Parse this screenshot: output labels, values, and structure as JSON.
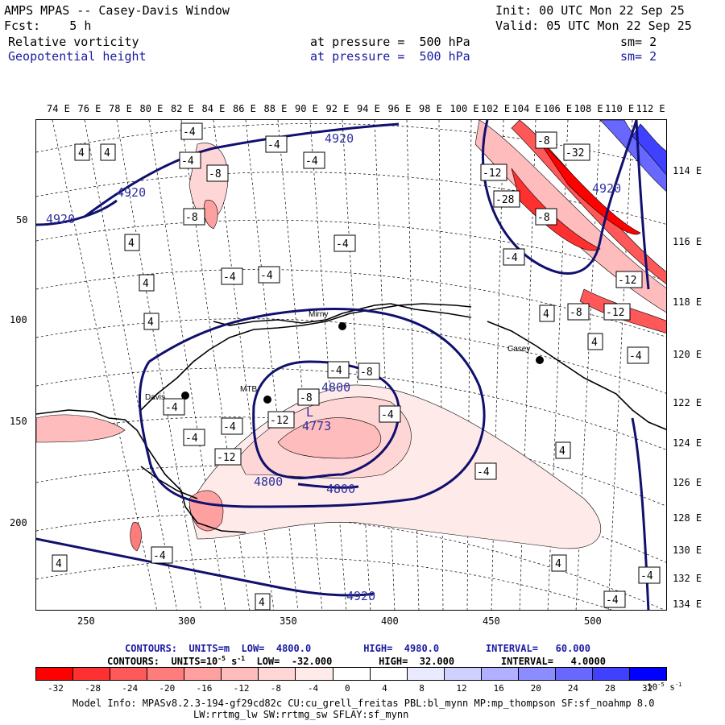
{
  "header": {
    "model_title": "AMPS MPAS -- Casey-Davis Window",
    "init_time": "Init: 00 UTC Mon 22 Sep 25",
    "fcst": "Fcst:    5 h",
    "valid_time": "Valid: 05 UTC Mon 22 Sep 25",
    "field1_name": "Relative vorticity",
    "field1_level": "at pressure =  500 hPa",
    "field1_smooth": "sm= 2",
    "field2_name": "Geopotential height",
    "field2_level": "at pressure =  500 hPa",
    "field2_smooth": "sm= 2"
  },
  "map": {
    "top_longitudes": [
      "74 E",
      "76 E",
      "78 E",
      "80 E",
      "82 E",
      "84 E",
      "86 E",
      "88 E",
      "90 E",
      "92 E",
      "94 E",
      "96 E",
      "98 E",
      "100 E",
      "102 E",
      "104 E",
      "106 E",
      "108 E",
      "110 E",
      "112 E"
    ],
    "right_longitudes": [
      "114 E",
      "116 E",
      "118 E",
      "120 E",
      "122 E",
      "124 E",
      "126 E",
      "128 E",
      "130 E",
      "132 E",
      "134 E"
    ],
    "y_grid_labels": [
      "50",
      "100",
      "150",
      "200"
    ],
    "x_grid_labels": [
      "250",
      "300",
      "350",
      "400",
      "450",
      "500"
    ],
    "stations": [
      "Davis",
      "MTB",
      "Mirny",
      "Casey"
    ],
    "height_contour_labels": [
      "4920",
      "4920",
      "4920",
      "4920",
      "4800",
      "4773",
      "4800",
      "4800",
      "4920"
    ],
    "vorticity_labels": [
      "4",
      "-4",
      "-8",
      "-12",
      "-32",
      "-28"
    ],
    "low_center_label": "L"
  },
  "contour_info": {
    "line1": "CONTOURS:  UNITS=m  LOW=  4800.0         HIGH=  4980.0        INTERVAL=   60.000",
    "line2": "CONTOURS:  UNITS=10",
    "line2_exp": "-5",
    "line2_s": " s",
    "line2_sexp": "-1",
    "line2_rest": "  LOW=  -32.000        HIGH=  32.000        INTERVAL=   4.0000"
  },
  "colorbar": {
    "labels": [
      "-32",
      "-28",
      "-24",
      "-20",
      "-16",
      "-12",
      "-8",
      "-4",
      "0",
      "4",
      "8",
      "12",
      "16",
      "20",
      "24",
      "28",
      "32"
    ],
    "units_base": "10",
    "units_exp": "-5",
    "units_s": " s",
    "units_sexp": "-1",
    "colors": [
      "#ff0000",
      "#ff3030",
      "#ff5858",
      "#ff7c7c",
      "#ffa0a0",
      "#ffbcbc",
      "#ffd6d6",
      "#ffeaea",
      "#ffffff",
      "#ffffff",
      "#eaeaff",
      "#d0d0ff",
      "#b0b0ff",
      "#8c8cff",
      "#6868ff",
      "#4040ff",
      "#0000ff"
    ]
  },
  "footer": {
    "model_info": "Model Info: MPASv8.2.3-194-gf29cd82c CU:cu_grell_freitas PBL:bl_mynn MP:mp_thompson SF:sf_noahmp 8.0",
    "model_info2": "LW:rrtmg_lw SW:rrtmg_sw SFLAY:sf_mynn"
  }
}
